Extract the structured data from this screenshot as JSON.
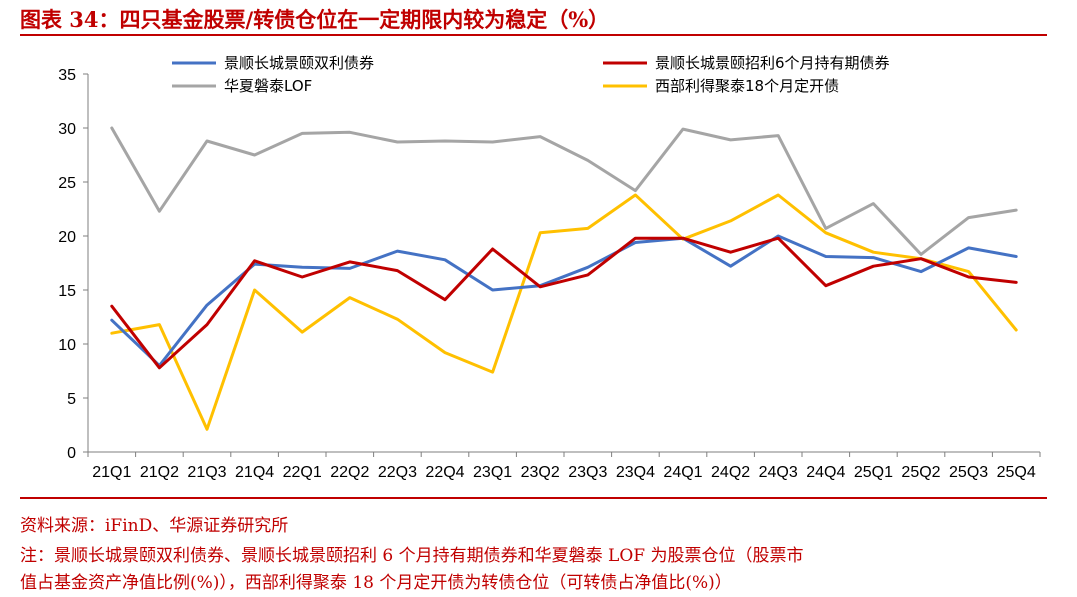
{
  "header": {
    "title": "图表 34：四只基金股票/转债仓位在一定期限内较为稳定（%）"
  },
  "footer": {
    "source": "资料来源：iFinD、华源证券研究所",
    "note_line1": "注：景顺长城景颐双利债券、景顺长城景颐招利 6 个月持有期债券和华夏磐泰 LOF 为股票仓位（股票市",
    "note_line2": "值占基金资产净值比例(%)），西部利得聚泰 18 个月定开债为转债仓位（可转债占净值比(%)）"
  },
  "chart_data": {
    "type": "line",
    "title": "",
    "xlabel": "",
    "ylabel": "",
    "ylim": [
      0,
      35
    ],
    "yticks": [
      0,
      5,
      10,
      15,
      20,
      25,
      30,
      35
    ],
    "grid": false,
    "legend_position": "top",
    "categories": [
      "21Q1",
      "21Q2",
      "21Q3",
      "21Q4",
      "22Q1",
      "22Q2",
      "22Q3",
      "22Q4",
      "23Q1",
      "23Q2",
      "23Q3",
      "23Q4",
      "24Q1",
      "24Q2",
      "24Q3",
      "24Q4",
      "25Q1",
      "25Q2",
      "25Q3",
      "25Q4"
    ],
    "series": [
      {
        "name": "景顺长城景颐双利债券",
        "color": "#4472c4",
        "values": [
          12.2,
          8.0,
          13.6,
          17.4,
          17.1,
          17.0,
          18.6,
          17.8,
          15.0,
          15.4,
          17.1,
          19.4,
          19.8,
          17.2,
          20.0,
          18.1,
          18.0,
          16.7,
          18.9,
          18.1
        ]
      },
      {
        "name": "景顺长城景颐招利6个月持有期债券",
        "color": "#c00000",
        "values": [
          13.5,
          7.8,
          11.8,
          17.7,
          16.2,
          17.6,
          16.8,
          14.1,
          18.8,
          15.3,
          16.4,
          19.8,
          19.8,
          18.5,
          19.8,
          15.4,
          17.2,
          17.9,
          16.2,
          15.7
        ]
      },
      {
        "name": "华夏磐泰LOF",
        "color": "#a5a5a5",
        "values": [
          30.0,
          22.3,
          28.8,
          27.5,
          29.5,
          29.6,
          28.7,
          28.8,
          28.7,
          29.2,
          27.0,
          24.2,
          29.9,
          28.9,
          29.3,
          20.7,
          23.0,
          18.3,
          21.7,
          22.4
        ]
      },
      {
        "name": "西部利得聚泰18个月定开债",
        "color": "#ffc000",
        "values": [
          11.0,
          11.8,
          2.1,
          15.0,
          11.1,
          14.3,
          12.3,
          9.2,
          7.4,
          20.3,
          20.7,
          23.8,
          19.7,
          21.4,
          23.8,
          20.3,
          18.5,
          17.9,
          16.7,
          11.3
        ]
      }
    ]
  }
}
